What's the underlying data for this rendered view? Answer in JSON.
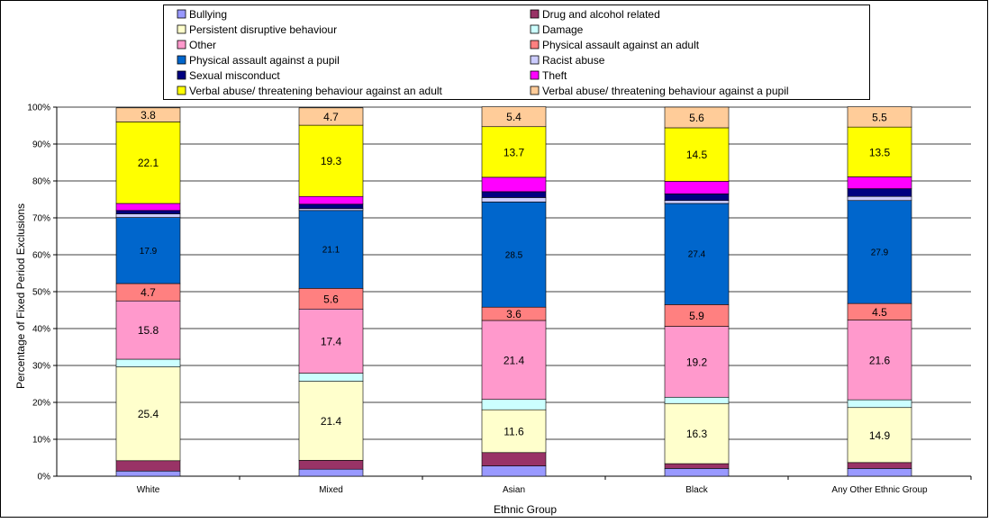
{
  "chart_data": {
    "type": "bar",
    "stacked": true,
    "title": "",
    "xlabel": "Ethnic Group",
    "ylabel": "Percentage of Fixed Period Exclusions",
    "ylim": [
      0,
      100
    ],
    "yticks": [
      "0%",
      "10%",
      "20%",
      "30%",
      "40%",
      "50%",
      "60%",
      "70%",
      "80%",
      "90%",
      "100%"
    ],
    "grid": true,
    "legend_position": "top",
    "categories": [
      "White",
      "Mixed",
      "Asian",
      "Black",
      "Any Other Ethnic Group"
    ],
    "series": [
      {
        "name": "Bullying",
        "color": "#9999ff",
        "values": [
          1.4,
          1.9,
          2.8,
          2.1,
          2.1
        ]
      },
      {
        "name": "Drug and alcohol related",
        "color": "#993366",
        "values": [
          2.8,
          2.4,
          3.6,
          1.3,
          1.6
        ]
      },
      {
        "name": "Persistent disruptive behaviour",
        "color": "#ffffcc",
        "values": [
          25.4,
          21.4,
          11.6,
          16.3,
          14.9
        ]
      },
      {
        "name": "Damage",
        "color": "#ccffff",
        "values": [
          2.1,
          2.2,
          2.8,
          1.7,
          2.1
        ]
      },
      {
        "name": "Other",
        "color": "#ff99cc",
        "values": [
          15.8,
          17.4,
          21.4,
          19.2,
          21.6
        ]
      },
      {
        "name": "Physical assault against an adult",
        "color": "#ff8080",
        "values": [
          4.7,
          5.6,
          3.6,
          5.9,
          4.5
        ]
      },
      {
        "name": "Physical assault against a pupil",
        "color": "#0066cc",
        "values": [
          17.9,
          21.1,
          28.5,
          27.4,
          27.9
        ]
      },
      {
        "name": "Racist abuse",
        "color": "#ccccff",
        "values": [
          1.0,
          0.5,
          1.2,
          0.8,
          1.1
        ]
      },
      {
        "name": "Sexual misconduct",
        "color": "#000080",
        "values": [
          0.9,
          1.2,
          1.6,
          1.8,
          2.1
        ]
      },
      {
        "name": "Theft",
        "color": "#ff00ff",
        "values": [
          1.9,
          2.1,
          3.9,
          3.4,
          3.2
        ]
      },
      {
        "name": "Verbal abuse/ threatening behaviour against an adult",
        "color": "#ffff00",
        "values": [
          22.1,
          19.3,
          13.7,
          14.5,
          13.5
        ]
      },
      {
        "name": "Verbal abuse/ threatening behaviour against a pupil",
        "color": "#ffcc99",
        "values": [
          3.8,
          4.7,
          5.4,
          5.6,
          5.5
        ]
      }
    ],
    "data_labels": {
      "Persistent disruptive behaviour": [
        "25.4",
        "21.4",
        "11.6",
        "16.3",
        "14.9"
      ],
      "Other": [
        "15.8",
        "17.4",
        "21.4",
        "19.2",
        "21.6"
      ],
      "Physical assault against an adult": [
        "4.7",
        "5.6",
        "3.6",
        "5.9",
        "4.5"
      ],
      "Physical assault against a pupil": [
        "17.9",
        "21.1",
        "28.5",
        "27.4",
        "27.9"
      ],
      "Verbal abuse/ threatening behaviour against an adult": [
        "22.1",
        "19.3",
        "13.7",
        "14.5",
        "13.5"
      ],
      "Verbal abuse/ threatening behaviour against a pupil": [
        "3.8",
        "4.7",
        "5.4",
        "5.6",
        "5.5"
      ]
    }
  }
}
